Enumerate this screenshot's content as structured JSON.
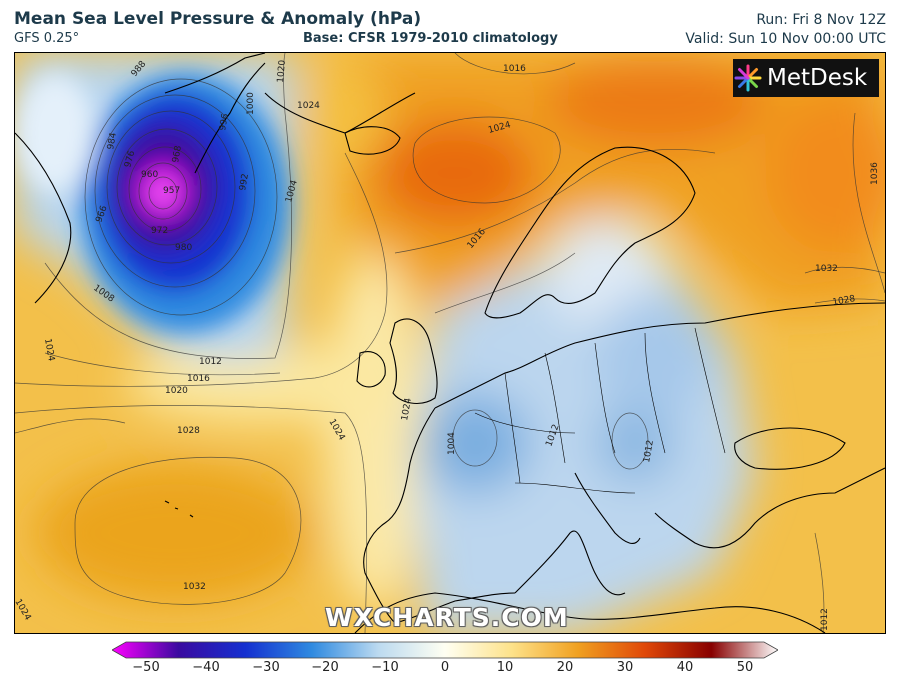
{
  "header": {
    "title": "Mean Sea Level Pressure & Anomaly (hPa)",
    "model": "GFS 0.25°",
    "base": "Base: CFSR 1979-2010 climatology",
    "run": "Run: Fri 8 Nov 12Z",
    "valid": "Valid: Sun 10 Nov 00:00 UTC"
  },
  "logo": {
    "text": "MetDesk",
    "icon": "metdesk-burst-logo"
  },
  "watermark": "WXCHARTS.COM",
  "colorbar": {
    "ticks": [
      "−50",
      "−40",
      "−30",
      "−20",
      "−10",
      "0",
      "10",
      "20",
      "30",
      "40",
      "50"
    ],
    "colors": {
      "min": "#ff00ff",
      "deep_negative": "#3a0aa0",
      "negative": "#1530d0",
      "mid_negative": "#2f8ae0",
      "light_negative": "#bcdaf0",
      "zero": "#fffff2",
      "light_positive": "#fde28a",
      "positive": "#f0a020",
      "strong_positive": "#e04808",
      "deep_positive": "#880000",
      "max": "#ffffff"
    }
  },
  "isobar_labels": [
    "988",
    "984",
    "976",
    "966",
    "960",
    "957",
    "968",
    "972",
    "980",
    "992",
    "996",
    "1000",
    "1004",
    "1008",
    "1012",
    "1016",
    "1016",
    "1020",
    "1020",
    "1024",
    "1024",
    "1024",
    "1024",
    "1024",
    "1024",
    "1028",
    "1028",
    "1032",
    "1032",
    "1036",
    "1016",
    "1004",
    "1012",
    "1012",
    "1012"
  ]
}
